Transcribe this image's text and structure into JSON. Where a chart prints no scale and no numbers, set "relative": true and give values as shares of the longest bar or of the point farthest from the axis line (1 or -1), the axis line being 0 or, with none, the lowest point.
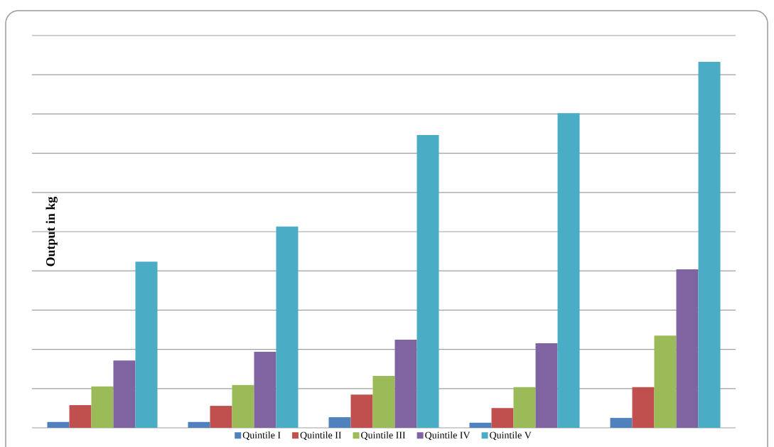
{
  "chart_data": {
    "type": "bar",
    "relative": true,
    "ylabel": "Output in kg",
    "categories": [
      null,
      null,
      null,
      null,
      null
    ],
    "grid": "y",
    "legend": "bottom",
    "series": [
      {
        "name": "Quintile I",
        "color": "#4f81bd",
        "values": [
          0.016,
          0.016,
          0.029,
          0.014,
          0.027
        ]
      },
      {
        "name": "Quintile II",
        "color": "#c0504d",
        "values": [
          0.062,
          0.06,
          0.091,
          0.054,
          0.111
        ]
      },
      {
        "name": "Quintile III",
        "color": "#9bbb59",
        "values": [
          0.113,
          0.117,
          0.142,
          0.111,
          0.252
        ]
      },
      {
        "name": "Quintile IV",
        "color": "#8064a2",
        "values": [
          0.184,
          0.208,
          0.241,
          0.231,
          0.433
        ]
      },
      {
        "name": "Quintile V",
        "color": "#4bacc6",
        "values": [
          0.454,
          0.55,
          0.8,
          0.86,
          1
        ]
      }
    ]
  }
}
